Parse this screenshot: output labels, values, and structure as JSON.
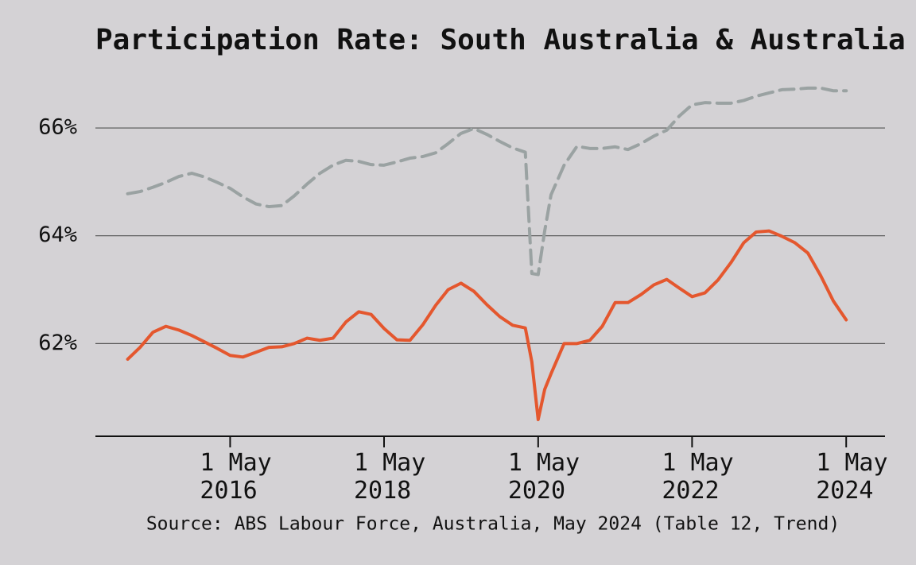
{
  "chart_data": {
    "type": "line",
    "title": "Participation Rate: South Australia & Australia",
    "source": "Source: ABS Labour Force, Australia, May 2024 (Table 12, Trend)",
    "x": [
      "2015-01-01",
      "2015-03-01",
      "2015-05-01",
      "2015-07-01",
      "2015-09-01",
      "2015-11-01",
      "2016-01-01",
      "2016-03-01",
      "2016-05-01",
      "2016-07-01",
      "2016-09-01",
      "2016-11-01",
      "2017-01-01",
      "2017-03-01",
      "2017-05-01",
      "2017-07-01",
      "2017-09-01",
      "2017-11-01",
      "2018-01-01",
      "2018-03-01",
      "2018-05-01",
      "2018-07-01",
      "2018-09-01",
      "2018-11-01",
      "2019-01-01",
      "2019-03-01",
      "2019-05-01",
      "2019-07-01",
      "2019-09-01",
      "2019-11-01",
      "2020-01-01",
      "2020-03-01",
      "2020-04-01",
      "2020-05-01",
      "2020-06-01",
      "2020-07-01",
      "2020-09-01",
      "2020-11-01",
      "2021-01-01",
      "2021-03-01",
      "2021-05-01",
      "2021-07-01",
      "2021-09-01",
      "2021-11-01",
      "2022-01-01",
      "2022-03-01",
      "2022-05-01",
      "2022-07-01",
      "2022-09-01",
      "2022-11-01",
      "2023-01-01",
      "2023-03-01",
      "2023-05-01",
      "2023-07-01",
      "2023-09-01",
      "2023-11-01",
      "2024-01-01",
      "2024-03-01",
      "2024-05-01"
    ],
    "series": [
      {
        "color": "#9aa2a2",
        "line_style": "dashed",
        "values": [
          64.78,
          64.82,
          64.9,
          64.99,
          65.1,
          65.16,
          65.09,
          64.99,
          64.88,
          64.72,
          64.59,
          64.54,
          64.56,
          64.74,
          64.96,
          65.16,
          65.31,
          65.4,
          65.38,
          65.32,
          65.31,
          65.37,
          65.44,
          65.47,
          65.54,
          65.71,
          65.9,
          65.99,
          65.88,
          65.75,
          65.63,
          65.55,
          63.3,
          63.28,
          64.09,
          64.76,
          65.31,
          65.66,
          65.62,
          65.62,
          65.65,
          65.6,
          65.71,
          65.85,
          65.96,
          66.22,
          66.43,
          66.47,
          66.46,
          66.46,
          66.51,
          66.59,
          66.65,
          66.71,
          66.72,
          66.74,
          66.74,
          66.69,
          66.69
        ]
      },
      {
        "color": "#e4572e",
        "line_style": "solid",
        "values": [
          61.71,
          61.93,
          62.21,
          62.32,
          62.25,
          62.15,
          62.03,
          61.91,
          61.78,
          61.75,
          61.84,
          61.93,
          61.94,
          62.0,
          62.1,
          62.06,
          62.1,
          62.4,
          62.59,
          62.54,
          62.28,
          62.07,
          62.06,
          62.35,
          62.71,
          63.0,
          63.12,
          62.97,
          62.72,
          62.5,
          62.34,
          62.29,
          61.66,
          60.59,
          61.15,
          61.44,
          62.0,
          62.0,
          62.06,
          62.32,
          62.76,
          62.76,
          62.91,
          63.09,
          63.19,
          63.03,
          62.87,
          62.94,
          63.18,
          63.5,
          63.87,
          64.07,
          64.09,
          63.99,
          63.87,
          63.68,
          63.26,
          62.79,
          62.44
        ]
      }
    ],
    "xlim": [
      "2014-08-01",
      "2024-11-01"
    ],
    "xticks": [
      {
        "value": "2016-05-01",
        "label": "1 May 2016"
      },
      {
        "value": "2018-05-01",
        "label": "1 May 2018"
      },
      {
        "value": "2020-05-01",
        "label": "1 May 2020"
      },
      {
        "value": "2022-05-01",
        "label": "1 May 2022"
      },
      {
        "value": "2024-05-01",
        "label": "1 May 2024"
      }
    ],
    "ylim": [
      60.28,
      66.9
    ],
    "yticks": [
      {
        "value": 62,
        "label": "62%"
      },
      {
        "value": 64,
        "label": "64%"
      },
      {
        "value": 66,
        "label": "66%"
      }
    ],
    "grid": true
  }
}
